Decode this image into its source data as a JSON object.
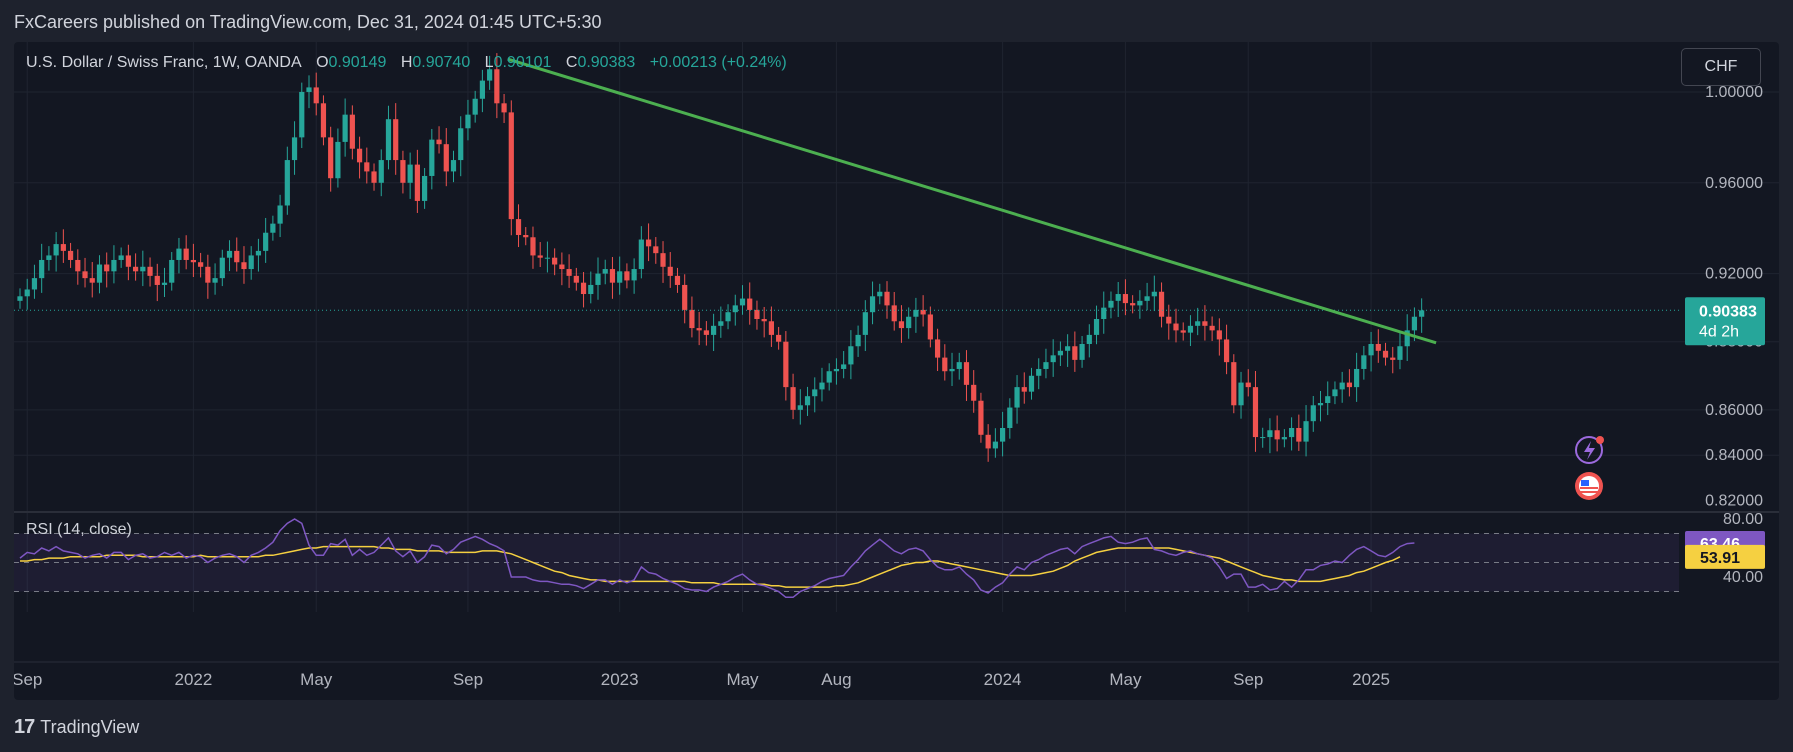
{
  "header": {
    "published": "FxCareers published on TradingView.com, Dec 31, 2024 01:45 UTC+5:30"
  },
  "legend": {
    "symbol": "U.S. Dollar / Swiss Franc, 1W, OANDA",
    "o_label": "O",
    "o": "0.90149",
    "h_label": "H",
    "h": "0.90740",
    "l_label": "L",
    "l": "0.90101",
    "c_label": "C",
    "c": "0.90383",
    "change": "+0.00213 (+0.24%)"
  },
  "currency_button": "CHF",
  "rsi_title": "RSI (14, close)",
  "footer": {
    "brand": "TradingView",
    "logo_text": "17"
  },
  "colors": {
    "up": "#26a69a",
    "down": "#ef5350",
    "trendline": "#4caf50",
    "rsi": "#7e57c2",
    "rsi_ma": "#f5d041",
    "background": "#131722"
  },
  "chart_data": {
    "type": "candlestick",
    "instrument": "USDCHF",
    "timeframe": "1W",
    "price_axis": {
      "ticks": [
        "1.00000",
        "0.96000",
        "0.92000",
        "0.88000",
        "0.86000",
        "0.84000",
        "0.82000"
      ],
      "range": [
        0.815,
        1.022
      ]
    },
    "time_axis": {
      "labels": [
        "Sep",
        "2022",
        "May",
        "Sep",
        "2023",
        "May",
        "Aug",
        "2024",
        "May",
        "Sep",
        "2025"
      ]
    },
    "last_price": {
      "value": "0.90383",
      "countdown": "4d 2h"
    },
    "trendline": {
      "from": [
        "2022-10-31",
        1.0145
      ],
      "to": [
        "2025-03-10",
        0.8895
      ]
    },
    "closes": [
      0.91,
      0.913,
      0.918,
      0.926,
      0.928,
      0.933,
      0.93,
      0.926,
      0.921,
      0.918,
      0.916,
      0.924,
      0.921,
      0.926,
      0.928,
      0.923,
      0.921,
      0.923,
      0.919,
      0.915,
      0.916,
      0.926,
      0.931,
      0.926,
      0.925,
      0.923,
      0.916,
      0.918,
      0.927,
      0.93,
      0.925,
      0.922,
      0.928,
      0.93,
      0.938,
      0.942,
      0.95,
      0.97,
      0.98,
      1.0,
      1.002,
      0.995,
      0.98,
      0.962,
      0.978,
      0.99,
      0.975,
      0.969,
      0.965,
      0.96,
      0.97,
      0.988,
      0.97,
      0.96,
      0.968,
      0.952,
      0.963,
      0.979,
      0.977,
      0.965,
      0.97,
      0.984,
      0.99,
      0.997,
      1.005,
      1.01,
      0.995,
      0.991,
      0.944,
      0.937,
      0.936,
      0.928,
      0.927,
      0.927,
      0.924,
      0.922,
      0.919,
      0.916,
      0.911,
      0.915,
      0.92,
      0.922,
      0.916,
      0.921,
      0.917,
      0.922,
      0.935,
      0.932,
      0.929,
      0.923,
      0.919,
      0.915,
      0.904,
      0.896,
      0.895,
      0.893,
      0.897,
      0.899,
      0.903,
      0.906,
      0.909,
      0.904,
      0.9,
      0.899,
      0.893,
      0.89,
      0.87,
      0.86,
      0.862,
      0.866,
      0.869,
      0.872,
      0.877,
      0.878,
      0.88,
      0.888,
      0.893,
      0.903,
      0.91,
      0.912,
      0.906,
      0.899,
      0.896,
      0.901,
      0.904,
      0.902,
      0.891,
      0.883,
      0.877,
      0.878,
      0.881,
      0.871,
      0.864,
      0.849,
      0.843,
      0.846,
      0.852,
      0.861,
      0.87,
      0.868,
      0.875,
      0.878,
      0.881,
      0.884,
      0.886,
      0.888,
      0.882,
      0.889,
      0.893,
      0.9,
      0.905,
      0.908,
      0.911,
      0.907,
      0.906,
      0.908,
      0.91,
      0.912,
      0.901,
      0.898,
      0.895,
      0.894,
      0.897,
      0.899,
      0.897,
      0.895,
      0.891,
      0.881,
      0.862,
      0.872,
      0.87,
      0.848,
      0.848,
      0.851,
      0.847,
      0.848,
      0.852,
      0.846,
      0.855,
      0.862,
      0.863,
      0.866,
      0.869,
      0.872,
      0.87,
      0.878,
      0.884,
      0.889,
      0.886,
      0.883,
      0.882,
      0.888,
      0.895,
      0.901,
      0.9038
    ],
    "rsi": {
      "ticks": [
        "80.00",
        "40.00"
      ],
      "bands": [
        70,
        50,
        30
      ],
      "value": "63.46",
      "ma_value": "53.91",
      "rsi_values": [
        53,
        57,
        56,
        60,
        58,
        61,
        58,
        57,
        56,
        53,
        55,
        56,
        53,
        57,
        57,
        52,
        55,
        56,
        53,
        54,
        57,
        55,
        57,
        53,
        55,
        54,
        50,
        53,
        55,
        56,
        54,
        50,
        55,
        57,
        60,
        64,
        72,
        77,
        80,
        77,
        62,
        55,
        55,
        63,
        62,
        66,
        55,
        59,
        55,
        57,
        62,
        67,
        58,
        54,
        58,
        50,
        54,
        62,
        61,
        56,
        59,
        64,
        66,
        68,
        66,
        63,
        61,
        58,
        40,
        40,
        40,
        38,
        37,
        37,
        36,
        35,
        35,
        34,
        32,
        35,
        38,
        38,
        35,
        38,
        36,
        38,
        47,
        43,
        42,
        39,
        37,
        35,
        32,
        31,
        31,
        30,
        33,
        35,
        37,
        40,
        42,
        38,
        35,
        34,
        32,
        30,
        26,
        26,
        30,
        32,
        34,
        37,
        39,
        40,
        41,
        47,
        52,
        58,
        62,
        66,
        62,
        58,
        56,
        59,
        60,
        58,
        52,
        47,
        45,
        45,
        47,
        42,
        38,
        31,
        29,
        33,
        36,
        42,
        47,
        45,
        50,
        52,
        55,
        57,
        59,
        60,
        56,
        61,
        63,
        65,
        67,
        68,
        64,
        63,
        64,
        66,
        67,
        59,
        58,
        56,
        55,
        57,
        58,
        56,
        55,
        53,
        47,
        39,
        42,
        42,
        33,
        33,
        35,
        31,
        32,
        37,
        33,
        38,
        45,
        45,
        48,
        49,
        51,
        50,
        55,
        59,
        61,
        58,
        55,
        54,
        57,
        61,
        63,
        63.46
      ],
      "ma_values": [
        51,
        51,
        52,
        52,
        53,
        53,
        53,
        54,
        54,
        54,
        54,
        54,
        55,
        55,
        55,
        55,
        55,
        54,
        54,
        54,
        54,
        54,
        54,
        54,
        54,
        55,
        54,
        54,
        54,
        54,
        54,
        54,
        54,
        54,
        55,
        55,
        56,
        57,
        58,
        59,
        60,
        60,
        61,
        61,
        61,
        61,
        61,
        61,
        61,
        61,
        60,
        60,
        59,
        59,
        59,
        58,
        58,
        58,
        58,
        57,
        57,
        57,
        57,
        57,
        58,
        58,
        58,
        57,
        56,
        54,
        52,
        50,
        48,
        46,
        44,
        43,
        41,
        40,
        39,
        38,
        38,
        37,
        37,
        37,
        37,
        37,
        37,
        37,
        37,
        37,
        37,
        37,
        37,
        36,
        36,
        36,
        36,
        35,
        35,
        35,
        35,
        35,
        35,
        35,
        34,
        34,
        33,
        33,
        33,
        33,
        33,
        33,
        33,
        34,
        34,
        35,
        36,
        38,
        40,
        42,
        44,
        46,
        48,
        49,
        50,
        50,
        51,
        51,
        50,
        49,
        48,
        47,
        46,
        45,
        44,
        43,
        42,
        41,
        41,
        41,
        41,
        42,
        43,
        44,
        46,
        48,
        51,
        53,
        55,
        57,
        58,
        59,
        60,
        60,
        60,
        60,
        60,
        60,
        60,
        60,
        59,
        58,
        57,
        56,
        55,
        54,
        53,
        51,
        49,
        47,
        45,
        43,
        41,
        40,
        39,
        38,
        38,
        37,
        37,
        37,
        37,
        38,
        39,
        40,
        41,
        43,
        44,
        46,
        48,
        50,
        51.5,
        53.91
      ]
    }
  }
}
